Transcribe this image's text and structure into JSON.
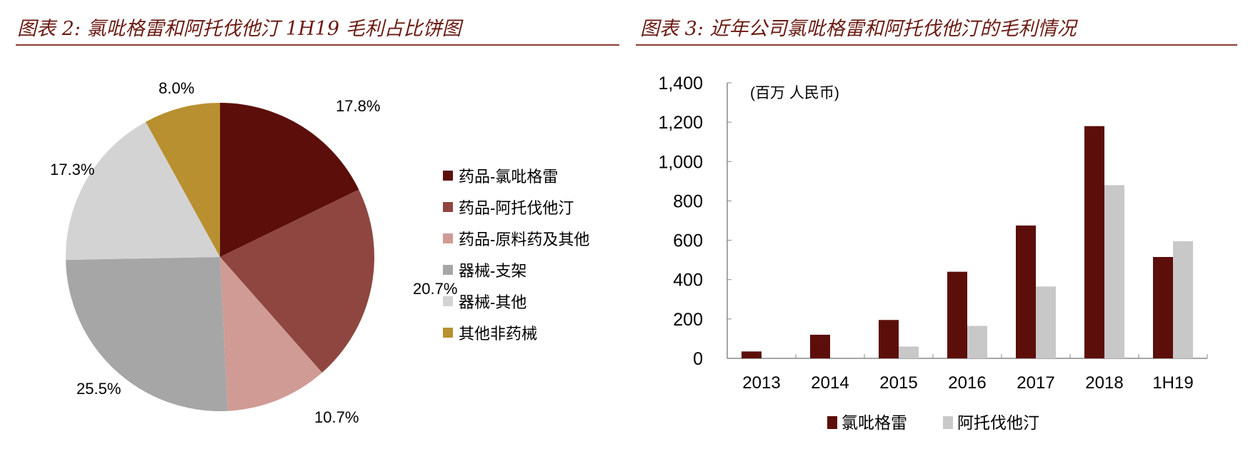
{
  "left_title": "图表 2:  氯吡格雷和阿托伐他汀 1H19 毛利占比饼图",
  "right_title": "图表 3:  近年公司氯吡格雷和阿托伐他汀的毛利情况",
  "chart_data": [
    {
      "type": "pie",
      "title": "图表 2:  氯吡格雷和阿托伐他汀 1H19 毛利占比饼图",
      "legend_position": "right",
      "slices": [
        {
          "label": "药品-氯吡格雷",
          "value": 17.8,
          "display": "17.8%",
          "color": "#5c0f0a"
        },
        {
          "label": "药品-阿托伐他汀",
          "value": 20.7,
          "display": "20.7%",
          "color": "#8f4640"
        },
        {
          "label": "药品-原料药及其他",
          "value": 10.7,
          "display": "10.7%",
          "color": "#d09b95"
        },
        {
          "label": "器械-支架",
          "value": 25.5,
          "display": "25.5%",
          "color": "#a6a6a6"
        },
        {
          "label": "器械-其他",
          "value": 17.3,
          "display": "17.3%",
          "color": "#d4d3d3"
        },
        {
          "label": "其他非药械",
          "value": 8.0,
          "display": "8.0%",
          "color": "#b8902f"
        }
      ]
    },
    {
      "type": "bar",
      "title": "图表 3:  近年公司氯吡格雷和阿托伐他汀的毛利情况",
      "unit_label": "(百万  人民币)",
      "categories": [
        "2013",
        "2014",
        "2015",
        "2016",
        "2017",
        "2018",
        "1H19"
      ],
      "series": [
        {
          "name": "氯吡格雷",
          "color": "#5c0f0a",
          "values": [
            35,
            120,
            195,
            440,
            675,
            1180,
            515
          ]
        },
        {
          "name": "阿托伐他汀",
          "color": "#c8c8c8",
          "values": [
            0,
            0,
            60,
            165,
            365,
            880,
            595
          ]
        }
      ],
      "ylim": [
        0,
        1400
      ],
      "yticks": [
        0,
        200,
        400,
        600,
        800,
        1000,
        1200,
        1400
      ],
      "ytick_labels": [
        "0",
        "200",
        "400",
        "600",
        "800",
        "1,000",
        "1,200",
        "1,400"
      ],
      "grid": false,
      "legend_position": "bottom"
    }
  ]
}
